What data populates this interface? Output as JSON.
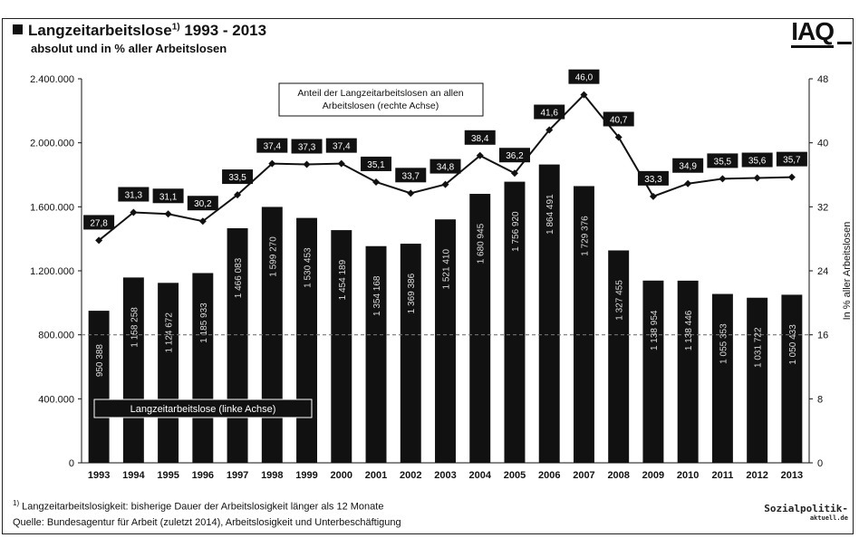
{
  "header": {
    "title": "Langzeitarbeitslose",
    "title_sup": "1)",
    "title_years": " 1993 - 2013",
    "subtitle": "absolut und in % aller Arbeitslosen",
    "logo": "IAQ"
  },
  "colors": {
    "bar": "#111111",
    "line": "#111111",
    "label_bg": "#111111",
    "label_text": "#ffffff"
  },
  "chart_data": {
    "type": "bar",
    "categories": [
      "1993",
      "1994",
      "1995",
      "1996",
      "1997",
      "1998",
      "1999",
      "2000",
      "2001",
      "2002",
      "2003",
      "2004",
      "2005",
      "2006",
      "2007",
      "2008",
      "2009",
      "2010",
      "2011",
      "2012",
      "2013"
    ],
    "series": [
      {
        "name": "Langzeitarbeitslose (linke Achse)",
        "axis": "left",
        "values": [
          950388,
          1158258,
          1124672,
          1185933,
          1466083,
          1599270,
          1530453,
          1454189,
          1354168,
          1369386,
          1521410,
          1680945,
          1756920,
          1864491,
          1729376,
          1327455,
          1138954,
          1138446,
          1055353,
          1031722,
          1050433
        ],
        "labels": [
          "950 388",
          "1 158 258",
          "1 124 672",
          "1 185 933",
          "1 466 083",
          "1 599 270",
          "1 530 453",
          "1 454 189",
          "1 354 168",
          "1 369 386",
          "1 521 410",
          "1 680 945",
          "1 756 920",
          "1 864 491",
          "1 729 376",
          "1 327 455",
          "1 138 954",
          "1 138 446",
          "1 055 353",
          "1 031 722",
          "1 050 433"
        ]
      },
      {
        "name": "Anteil der Langzeitarbeitslosen an allen Arbeitslosen (rechte Achse)",
        "axis": "right",
        "type": "line",
        "values": [
          27.8,
          31.3,
          31.1,
          30.2,
          33.5,
          37.4,
          37.3,
          37.4,
          35.1,
          33.7,
          34.8,
          38.4,
          36.2,
          41.6,
          46.0,
          40.7,
          33.3,
          34.9,
          35.5,
          35.6,
          35.7
        ],
        "labels": [
          "27,8",
          "31,3",
          "31,1",
          "30,2",
          "33,5",
          "37,4",
          "37,3",
          "37,4",
          "35,1",
          "33,7",
          "34,8",
          "38,4",
          "36,2",
          "41,6",
          "46,0",
          "40,7",
          "33,3",
          "34,9",
          "35,5",
          "35,6",
          "35,7"
        ]
      }
    ],
    "legend_bar": "Langzeitarbeitslose (linke Achse)",
    "legend_line": "Anteil der Langzeitarbeitslosen an allen Arbeitslosen (rechte Achse)",
    "y_left": {
      "range": [
        0,
        2400000
      ],
      "ticks": [
        "0",
        "400.000",
        "800.000",
        "1.200.000",
        "1.600.000",
        "2.000.000",
        "2.400.000"
      ]
    },
    "y_right": {
      "range": [
        0,
        48
      ],
      "label": "In % aller Arbeitslosen",
      "ticks": [
        "0",
        "8",
        "16",
        "24",
        "32",
        "40",
        "48"
      ]
    },
    "reference_line_left": 800000,
    "grid": false
  },
  "footer": {
    "footnote_sup": "1)",
    "footnote": " Langzeitarbeitslosigkeit: bisherige Dauer der Arbeitslosigkeit länger als 12 Monate",
    "source": "Quelle: Bundesagentur für Arbeit (zuletzt 2014), Arbeitslosigkeit und Unterbeschäftigung",
    "watermark": "Sozialpolitik-",
    "watermark_small": "aktuell.de"
  }
}
